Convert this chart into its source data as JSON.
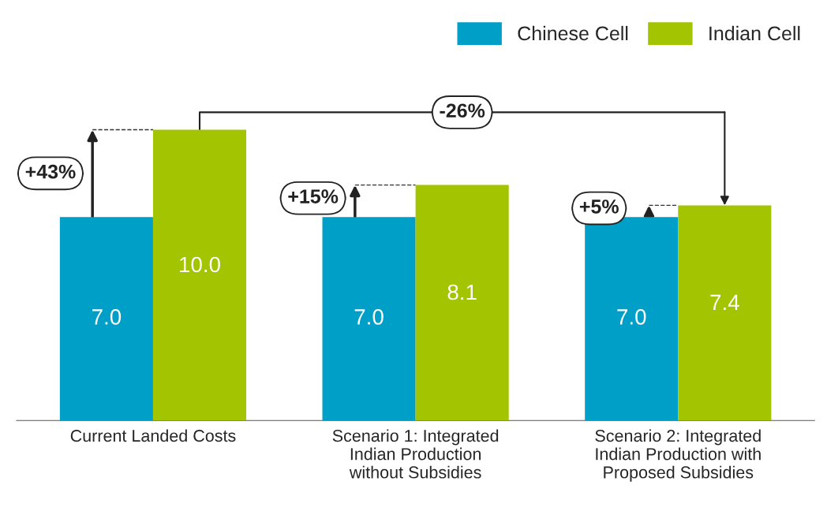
{
  "chart_data": {
    "type": "bar",
    "categories": [
      "Current Landed Costs",
      "Scenario 1: Integrated\nIndian Production\nwithout Subsidies",
      "Scenario 2: Integrated\nIndian Production with\nProposed Subsidies"
    ],
    "series": [
      {
        "name": "Chinese Cell",
        "color": "#009fc7",
        "values": [
          7.0,
          7.0,
          7.0
        ],
        "value_labels": [
          "7.0",
          "7.0",
          "7.0"
        ]
      },
      {
        "name": "Indian Cell",
        "color": "#a3c400",
        "values": [
          10.0,
          8.1,
          7.4
        ],
        "value_labels": [
          "10.0",
          "8.1",
          "7.4"
        ]
      }
    ],
    "legend": "top right",
    "annotations": [
      "+43%",
      "+15%",
      "+5%",
      "-26%"
    ]
  }
}
